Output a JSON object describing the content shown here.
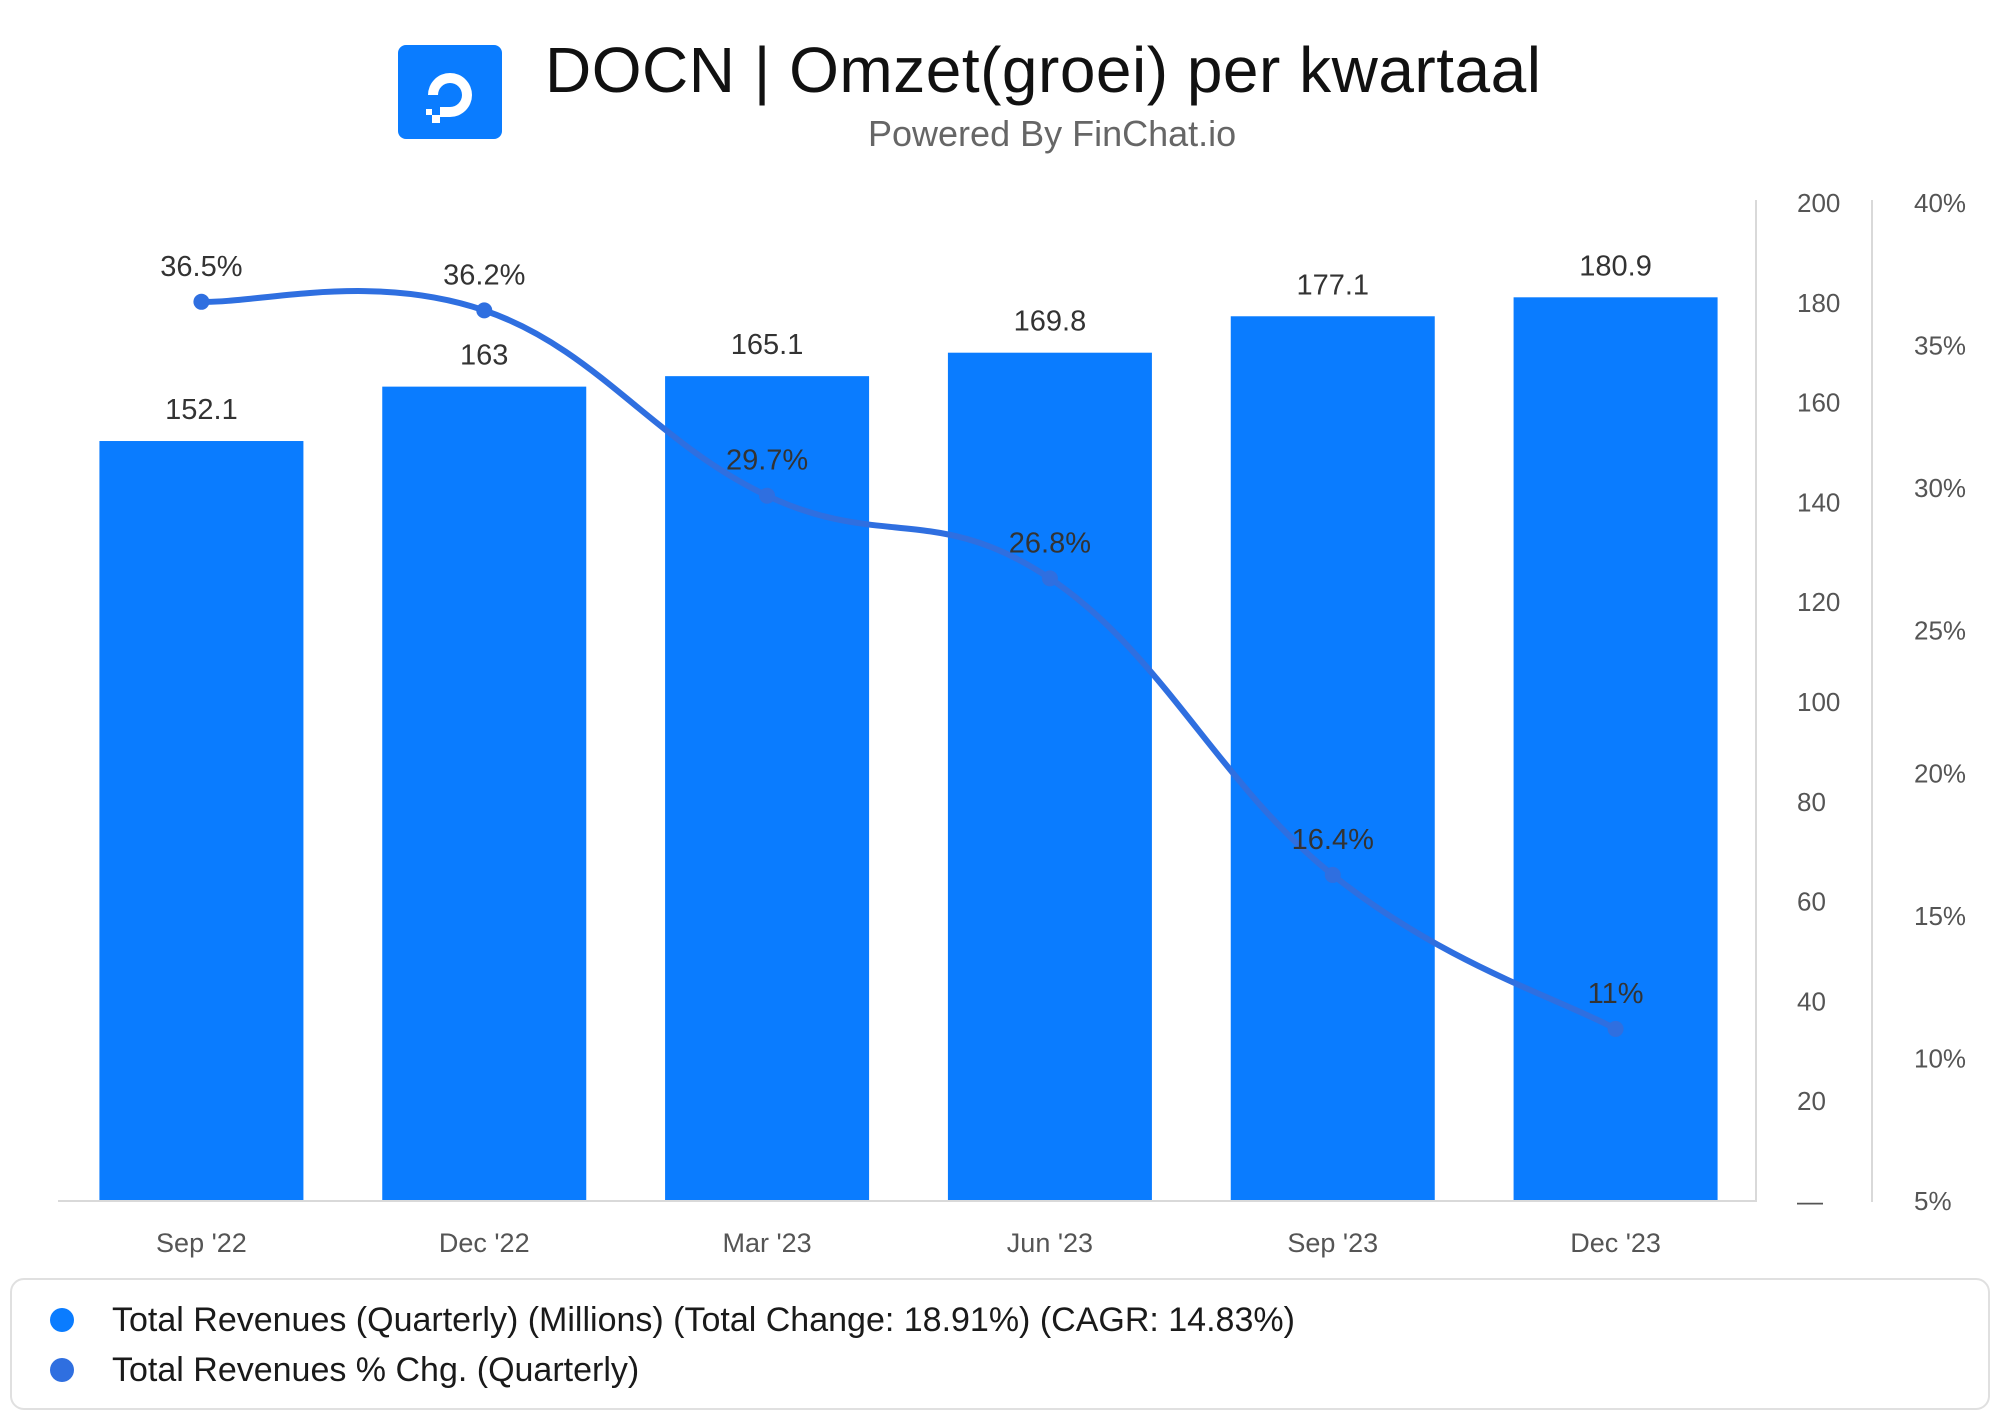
{
  "header": {
    "title": "DOCN | Omzet(groei) per kwartaal",
    "subtitle": "Powered By FinChat.io",
    "logo_icon": "digitalocean-logo-icon"
  },
  "colors": {
    "bar": "#0a7cff",
    "line": "#2f6fe0",
    "axis_text": "#555555",
    "label_text": "#333333",
    "grid": "#d9d9d9"
  },
  "chart_data": {
    "type": "bar",
    "categories": [
      "Sep '22",
      "Dec '22",
      "Mar '23",
      "Jun '23",
      "Sep '23",
      "Dec '23"
    ],
    "series": [
      {
        "name": "Total Revenues (Quarterly) (Millions) (Total Change: 18.91%) (CAGR: 14.83%)",
        "type": "bar",
        "axis": "left",
        "values": [
          152.1,
          163,
          165.1,
          169.8,
          177.1,
          180.9
        ],
        "labels": [
          "152.1",
          "163",
          "165.1",
          "169.8",
          "177.1",
          "180.9"
        ]
      },
      {
        "name": "Total Revenues % Chg. (Quarterly)",
        "type": "line",
        "axis": "right",
        "values": [
          36.5,
          36.2,
          29.7,
          26.8,
          16.4,
          11
        ],
        "labels": [
          "36.5%",
          "36.2%",
          "29.7%",
          "26.8%",
          "16.4%",
          "11%"
        ]
      }
    ],
    "y_axis_left": {
      "range": [
        0,
        200
      ],
      "ticks": [
        0,
        20,
        40,
        60,
        80,
        100,
        120,
        140,
        160,
        180,
        200
      ],
      "tick_labels": [
        "—",
        "20",
        "40",
        "60",
        "80",
        "100",
        "120",
        "140",
        "160",
        "180",
        "200"
      ]
    },
    "y_axis_right": {
      "range": [
        5,
        40
      ],
      "ticks": [
        5,
        10,
        15,
        20,
        25,
        30,
        35,
        40
      ],
      "tick_labels": [
        "5%",
        "10%",
        "15%",
        "20%",
        "25%",
        "30%",
        "35%",
        "40%"
      ]
    },
    "grid": false,
    "legend_position": "bottom"
  },
  "legend": {
    "items": [
      {
        "label": "Total Revenues (Quarterly) (Millions) (Total Change: 18.91%) (CAGR: 14.83%)",
        "color": "#0a7cff"
      },
      {
        "label": "Total Revenues % Chg. (Quarterly)",
        "color": "#2f6fe0"
      }
    ]
  }
}
